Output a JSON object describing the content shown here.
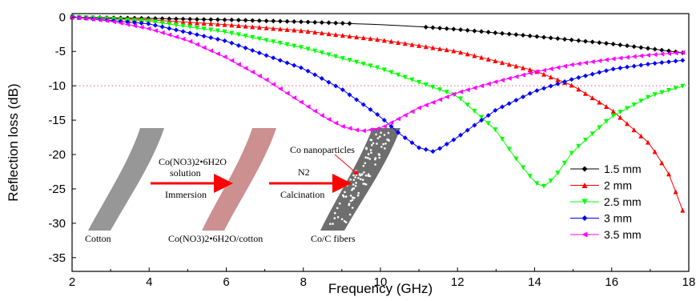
{
  "chart_data": {
    "type": "line",
    "xlabel": "Frequency (GHz)",
    "ylabel": "Reflection loss (dB)",
    "xlim": [
      2,
      18
    ],
    "ylim": [
      -37,
      0.5
    ],
    "xticks": [
      2,
      4,
      6,
      8,
      10,
      12,
      14,
      16,
      18
    ],
    "yticks": [
      0,
      -5,
      -10,
      -15,
      -20,
      -25,
      -30,
      -35
    ],
    "reference_line": {
      "y": -10,
      "color": "#e8789a",
      "style": "dotted"
    },
    "grid": false,
    "legend_position": "bottom-right",
    "series": [
      {
        "name": "1.5 mm",
        "color": "#000000",
        "marker": "diamond",
        "x": [
          2,
          4,
          6,
          8,
          10,
          11,
          12,
          14,
          16,
          18
        ],
        "y": [
          0,
          -0.2,
          -0.4,
          -0.7,
          -1.1,
          -1.4,
          -1.8,
          -2.8,
          -3.9,
          -5.3
        ]
      },
      {
        "name": "2 mm",
        "color": "#ff0000",
        "marker": "triangle-up",
        "x": [
          2,
          4,
          6,
          8,
          10,
          12,
          14,
          15,
          16,
          17,
          17.5,
          18
        ],
        "y": [
          0,
          -0.4,
          -1.1,
          -2.0,
          -3.3,
          -5.0,
          -7.8,
          -10.0,
          -13.5,
          -18.5,
          -23,
          -30.5
        ]
      },
      {
        "name": "2.5 mm",
        "color": "#00ff00",
        "marker": "triangle-down",
        "x": [
          2,
          4,
          6,
          8,
          10,
          12,
          13,
          13.5,
          14,
          14.2,
          14.5,
          15,
          16,
          17,
          18
        ],
        "y": [
          0,
          -0.6,
          -2.2,
          -4.5,
          -7.5,
          -11.5,
          -16.5,
          -20.5,
          -24.0,
          -24.8,
          -23.5,
          -19.5,
          -14.5,
          -11.5,
          -9.8
        ]
      },
      {
        "name": "3 mm",
        "color": "#0000ff",
        "marker": "diamond",
        "x": [
          2,
          4,
          6,
          8,
          9,
          10,
          10.5,
          11,
          11.4,
          12,
          13,
          14,
          15,
          16,
          17,
          18
        ],
        "y": [
          0,
          -1.0,
          -3.5,
          -7.5,
          -10.5,
          -14.5,
          -17.0,
          -19.0,
          -19.6,
          -17.5,
          -13.5,
          -10.8,
          -9.0,
          -7.6,
          -6.8,
          -6.2
        ]
      },
      {
        "name": "3.5 mm",
        "color": "#ff00ff",
        "marker": "triangle-left",
        "x": [
          2,
          3,
          4,
          5,
          6,
          7,
          8,
          8.5,
          9,
          9.5,
          10,
          10.5,
          11,
          12,
          13,
          14,
          15,
          16,
          17,
          18
        ],
        "y": [
          0,
          -0.6,
          -1.7,
          -3.4,
          -5.9,
          -9.0,
          -12.6,
          -14.4,
          -15.9,
          -16.6,
          -16.2,
          -14.7,
          -13.2,
          -11.0,
          -9.4,
          -8.0,
          -6.9,
          -6.1,
          -5.5,
          -5.1
        ]
      }
    ],
    "inset": {
      "labels": {
        "cotton": "Cotton",
        "soaked": "Co(NO3)2•6H2O/cotton",
        "fibers": "Co/C fibers",
        "step1_reagent": "Co(NO3)2•6H2O",
        "step1_solution": "solution",
        "step1_process": "Immersion",
        "step2_gas": "N2",
        "step2_process": "Calcination",
        "nanoparticles": "Co nanoparticles"
      },
      "fiber_colors": [
        "#8c8c8c",
        "#c98a8a",
        "#7a7a7a"
      ],
      "arrow_color": "#ff0000"
    }
  }
}
